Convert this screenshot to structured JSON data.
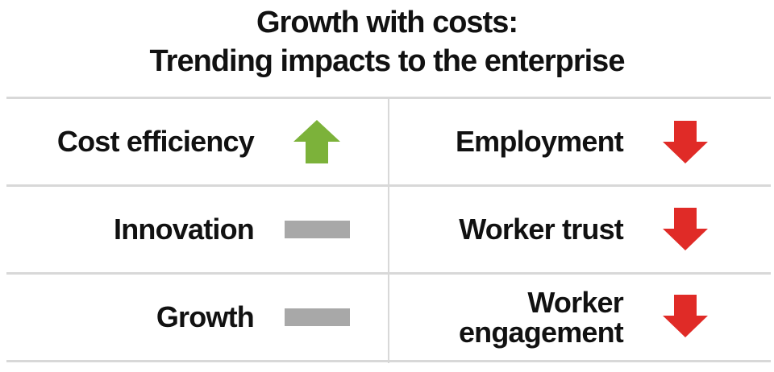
{
  "title": {
    "line1": "Growth with costs:",
    "line2": "Trending impacts to the enterprise"
  },
  "colors": {
    "up": "#7cb23a",
    "down": "#e02b27",
    "neutral": "#a8a8a8",
    "divider": "#d8d8d8"
  },
  "left": [
    {
      "label": "Cost efficiency",
      "trend": "up",
      "icon": "arrow-up-icon"
    },
    {
      "label": "Innovation",
      "trend": "neutral",
      "icon": "dash-icon"
    },
    {
      "label": "Growth",
      "trend": "neutral",
      "icon": "dash-icon"
    }
  ],
  "right": [
    {
      "label": "Employment",
      "trend": "down",
      "icon": "arrow-down-icon"
    },
    {
      "label": "Worker trust",
      "trend": "down",
      "icon": "arrow-down-icon"
    },
    {
      "label_line1": "Worker",
      "label_line2": "engagement",
      "trend": "down",
      "icon": "arrow-down-icon"
    }
  ]
}
